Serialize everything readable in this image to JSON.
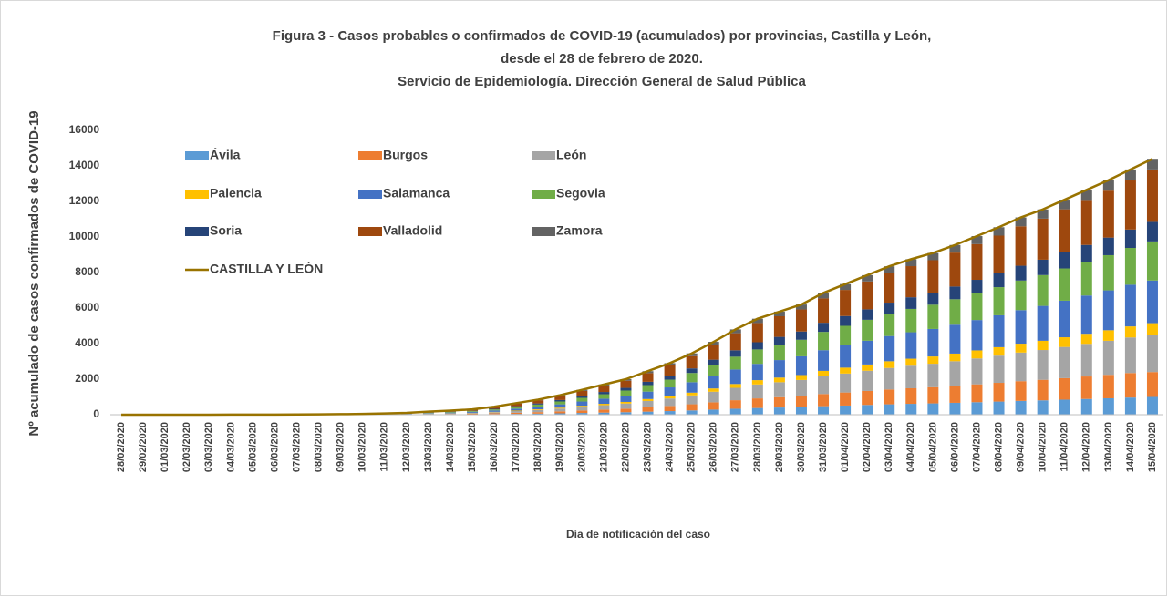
{
  "chart_data": {
    "type": "bar",
    "stacked": true,
    "title": [
      "Figura 3 - Casos probables o confirmados de COVID-19 (acumulados) por provincias, Castilla y León,",
      "desde el 28 de febrero de 2020.",
      "Servicio de Epidemiología. Dirección General de Salud Pública"
    ],
    "x_label": "Día de notificación del caso",
    "y_label": "Nº acumulado de casos confirmados de COVID-19",
    "categories": [
      "28/02/2020",
      "29/02/2020",
      "01/03/2020",
      "02/03/2020",
      "03/03/2020",
      "04/03/2020",
      "05/03/2020",
      "06/03/2020",
      "07/03/2020",
      "08/03/2020",
      "09/03/2020",
      "10/03/2020",
      "11/03/2020",
      "12/03/2020",
      "13/03/2020",
      "14/03/2020",
      "15/03/2020",
      "16/03/2020",
      "17/03/2020",
      "18/03/2020",
      "19/03/2020",
      "20/03/2020",
      "21/03/2020",
      "22/03/2020",
      "23/03/2020",
      "24/03/2020",
      "25/03/2020",
      "26/03/2020",
      "27/03/2020",
      "28/03/2020",
      "29/03/2020",
      "30/03/2020",
      "31/03/2020",
      "01/04/2020",
      "02/04/2020",
      "03/04/2020",
      "04/04/2020",
      "05/04/2020",
      "06/04/2020",
      "07/04/2020",
      "08/04/2020",
      "09/04/2020",
      "10/04/2020",
      "11/04/2020",
      "12/04/2020",
      "13/04/2020",
      "14/04/2020",
      "15/04/2020"
    ],
    "series": [
      {
        "name": "Ávila",
        "color": "#5b9bd5",
        "values": [
          0,
          0,
          0,
          0,
          0,
          0,
          0,
          0,
          0,
          1,
          2,
          3,
          5,
          7,
          12,
          16,
          21,
          32,
          45,
          60,
          77,
          98,
          119,
          140,
          172,
          203,
          242,
          287,
          336,
          378,
          406,
          434,
          480,
          515,
          550,
          585,
          613,
          637,
          669,
          704,
          739,
          777,
          809,
          847,
          886,
          924,
          966,
          1000
        ]
      },
      {
        "name": "Burgos",
        "color": "#ed7d31",
        "values": [
          0,
          0,
          0,
          0,
          0,
          0,
          1,
          1,
          1,
          2,
          3,
          5,
          7,
          10,
          17,
          23,
          30,
          45,
          65,
          85,
          110,
          140,
          170,
          200,
          245,
          290,
          345,
          410,
          480,
          540,
          580,
          620,
          685,
          735,
          785,
          835,
          875,
          910,
          955,
          1005,
          1055,
          1110,
          1155,
          1210,
          1265,
          1320,
          1380,
          1400
        ]
      },
      {
        "name": "León",
        "color": "#a5a5a5",
        "values": [
          0,
          0,
          0,
          0,
          0,
          1,
          1,
          1,
          2,
          3,
          4,
          6,
          10,
          15,
          25,
          33,
          44,
          65,
          94,
          123,
          160,
          203,
          247,
          290,
          355,
          420,
          500,
          595,
          696,
          783,
          841,
          899,
          993,
          1066,
          1138,
          1211,
          1269,
          1320,
          1385,
          1457,
          1530,
          1610,
          1675,
          1755,
          1834,
          1914,
          2001,
          2100
        ]
      },
      {
        "name": "Palencia",
        "color": "#ffc000",
        "values": [
          0,
          0,
          0,
          0,
          0,
          0,
          0,
          0,
          0,
          0,
          1,
          2,
          3,
          4,
          8,
          10,
          13,
          20,
          29,
          38,
          50,
          63,
          77,
          90,
          110,
          131,
          155,
          185,
          216,
          243,
          261,
          279,
          308,
          331,
          353,
          376,
          394,
          410,
          430,
          452,
          475,
          500,
          520,
          545,
          569,
          594,
          621,
          650
        ]
      },
      {
        "name": "Salamanca",
        "color": "#4472c4",
        "values": [
          0,
          0,
          0,
          1,
          1,
          1,
          1,
          2,
          3,
          4,
          6,
          8,
          12,
          17,
          29,
          39,
          51,
          77,
          110,
          145,
          187,
          238,
          289,
          340,
          417,
          493,
          587,
          697,
          816,
          918,
          986,
          1054,
          1165,
          1250,
          1335,
          1420,
          1488,
          1547,
          1624,
          1709,
          1794,
          1887,
          1964,
          2057,
          2151,
          2244,
          2346,
          2400
        ]
      },
      {
        "name": "Segovia",
        "color": "#70ad47",
        "values": [
          0,
          0,
          0,
          0,
          0,
          0,
          0,
          0,
          1,
          2,
          3,
          5,
          8,
          12,
          22,
          30,
          40,
          60,
          90,
          120,
          160,
          205,
          250,
          300,
          368,
          435,
          518,
          615,
          720,
          810,
          870,
          930,
          1028,
          1103,
          1178,
          1253,
          1313,
          1365,
          1433,
          1508,
          1583,
          1665,
          1733,
          1815,
          1898,
          1980,
          2070,
          2200
        ]
      },
      {
        "name": "Soria",
        "color": "#264478",
        "values": [
          0,
          0,
          0,
          0,
          0,
          0,
          0,
          0,
          0,
          1,
          2,
          3,
          5,
          7,
          13,
          17,
          22,
          34,
          49,
          64,
          82,
          105,
          127,
          150,
          184,
          218,
          259,
          307,
          360,
          405,
          435,
          465,
          514,
          551,
          589,
          626,
          656,
          683,
          716,
          754,
          791,
          833,
          866,
          908,
          949,
          990,
          1035,
          1100
        ]
      },
      {
        "name": "Valladolid",
        "color": "#9e480e",
        "values": [
          0,
          0,
          2,
          2,
          2,
          2,
          2,
          3,
          5,
          7,
          8,
          11,
          16,
          23,
          36,
          51,
          66,
          97,
          139,
          177,
          224,
          285,
          345,
          400,
          489,
          580,
          689,
          820,
          960,
          1080,
          1160,
          1240,
          1370,
          1470,
          1570,
          1670,
          1750,
          1820,
          1910,
          2010,
          2110,
          2220,
          2310,
          2420,
          2530,
          2640,
          2760,
          2950
        ]
      },
      {
        "name": "Zamora",
        "color": "#636363",
        "values": [
          0,
          0,
          0,
          0,
          0,
          0,
          0,
          0,
          0,
          0,
          1,
          2,
          4,
          5,
          8,
          11,
          13,
          20,
          29,
          38,
          50,
          63,
          76,
          90,
          110,
          130,
          155,
          184,
          216,
          243,
          261,
          279,
          307,
          329,
          352,
          374,
          392,
          408,
          428,
          451,
          473,
          498,
          518,
          543,
          568,
          594,
          621,
          600
        ]
      },
      {
        "name": "CASTILLA Y LEÓN",
        "color": "#997300",
        "type": "line",
        "values": [
          0,
          0,
          2,
          3,
          3,
          4,
          5,
          7,
          12,
          20,
          30,
          45,
          70,
          100,
          170,
          230,
          300,
          450,
          650,
          850,
          1100,
          1400,
          1700,
          2000,
          2450,
          2900,
          3450,
          4100,
          4800,
          5400,
          5800,
          6200,
          6850,
          7350,
          7850,
          8350,
          8750,
          9100,
          9550,
          10050,
          10550,
          11100,
          11550,
          12100,
          12650,
          13200,
          13800,
          14400
        ]
      }
    ],
    "ylim": [
      0,
      16000
    ],
    "yticks": [
      0,
      2000,
      4000,
      6000,
      8000,
      10000,
      12000,
      14000,
      16000
    ],
    "grid": false,
    "legend": "upper left"
  }
}
